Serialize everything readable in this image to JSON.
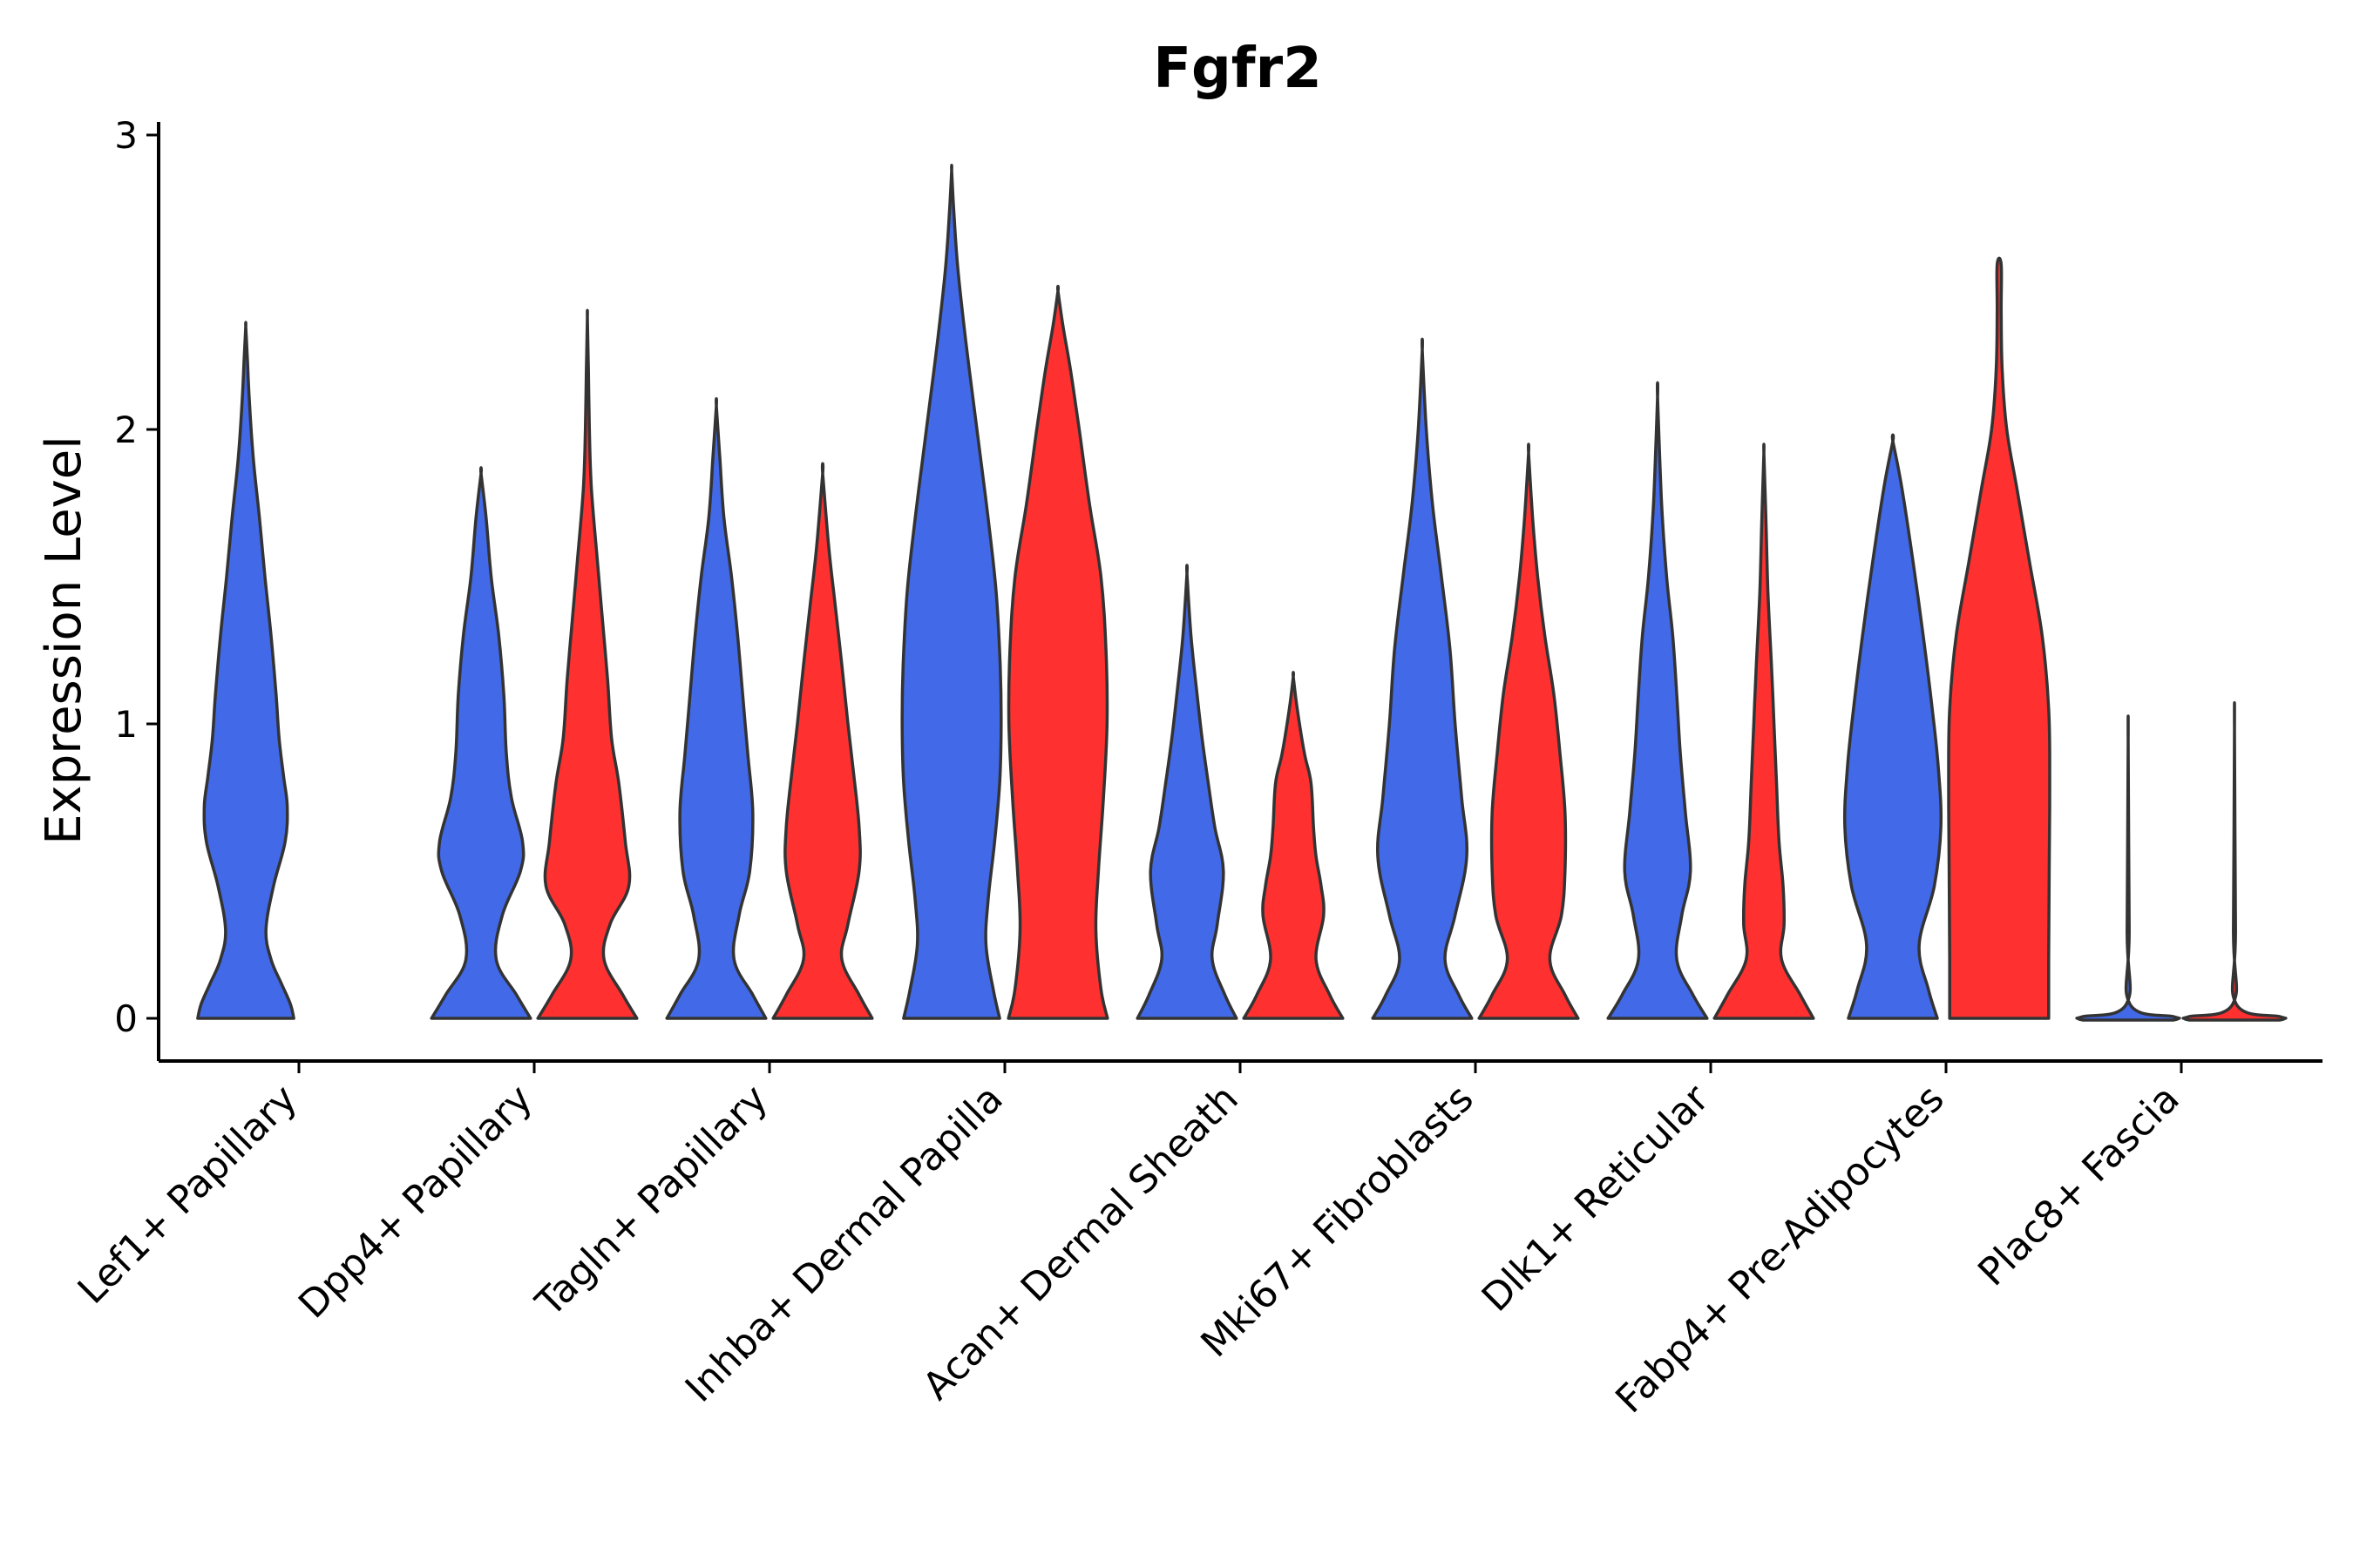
{
  "chart_data": {
    "type": "violin",
    "title": "Fgfr2",
    "xlabel": "",
    "ylabel": "Expression Level",
    "ylim": [
      -0.15,
      3.05
    ],
    "yticks": [
      0,
      1,
      2,
      3
    ],
    "ytick_labels": [
      "0",
      "1",
      "2",
      "3"
    ],
    "categories": [
      "Lef1+ Papillary",
      "Dpp4+ Papillary",
      "Tagln+ Papillary",
      "Inhba+ Dermal Papilla",
      "Acan+ Dermal Sheath",
      "Mki67+ Fibroblasts",
      "Dlk1+ Reticular",
      "Fabp4+ Pre-Adipocytes",
      "Plac8+ Fascia"
    ],
    "colors": {
      "group_a": "#4169E8",
      "group_b": "#FF3030",
      "outline": "#333333"
    },
    "violins": [
      {
        "category": 0,
        "group": "a",
        "max": 2.35,
        "profile": [
          [
            0,
            0.95
          ],
          [
            0.05,
            0.88
          ],
          [
            0.12,
            0.7
          ],
          [
            0.2,
            0.5
          ],
          [
            0.3,
            0.4
          ],
          [
            0.45,
            0.55
          ],
          [
            0.6,
            0.78
          ],
          [
            0.72,
            0.82
          ],
          [
            0.82,
            0.75
          ],
          [
            0.95,
            0.66
          ],
          [
            1.1,
            0.6
          ],
          [
            1.3,
            0.5
          ],
          [
            1.5,
            0.38
          ],
          [
            1.7,
            0.27
          ],
          [
            1.9,
            0.15
          ],
          [
            2.1,
            0.07
          ],
          [
            2.25,
            0.03
          ],
          [
            2.35,
            0
          ]
        ]
      },
      {
        "category": 1,
        "group": "a",
        "max": 1.85,
        "profile": [
          [
            0,
            0.98
          ],
          [
            0.08,
            0.7
          ],
          [
            0.2,
            0.3
          ],
          [
            0.35,
            0.42
          ],
          [
            0.5,
            0.78
          ],
          [
            0.6,
            0.82
          ],
          [
            0.75,
            0.6
          ],
          [
            0.9,
            0.5
          ],
          [
            1.1,
            0.45
          ],
          [
            1.3,
            0.35
          ],
          [
            1.5,
            0.2
          ],
          [
            1.7,
            0.1
          ],
          [
            1.85,
            0
          ]
        ]
      },
      {
        "category": 1,
        "group": "b",
        "max": 2.38,
        "profile": [
          [
            0,
            0.98
          ],
          [
            0.08,
            0.7
          ],
          [
            0.2,
            0.33
          ],
          [
            0.32,
            0.45
          ],
          [
            0.45,
            0.82
          ],
          [
            0.6,
            0.75
          ],
          [
            0.8,
            0.62
          ],
          [
            0.95,
            0.48
          ],
          [
            1.15,
            0.4
          ],
          [
            1.35,
            0.3
          ],
          [
            1.55,
            0.2
          ],
          [
            1.8,
            0.08
          ],
          [
            2.0,
            0.04
          ],
          [
            2.2,
            0.02
          ],
          [
            2.38,
            0
          ]
        ]
      },
      {
        "category": 2,
        "group": "a",
        "max": 2.08,
        "profile": [
          [
            0,
            0.98
          ],
          [
            0.08,
            0.72
          ],
          [
            0.2,
            0.35
          ],
          [
            0.35,
            0.45
          ],
          [
            0.5,
            0.66
          ],
          [
            0.7,
            0.72
          ],
          [
            0.9,
            0.62
          ],
          [
            1.1,
            0.52
          ],
          [
            1.3,
            0.42
          ],
          [
            1.5,
            0.3
          ],
          [
            1.7,
            0.15
          ],
          [
            1.9,
            0.07
          ],
          [
            2.08,
            0
          ]
        ]
      },
      {
        "category": 2,
        "group": "b",
        "max": 1.85,
        "profile": [
          [
            0,
            0.98
          ],
          [
            0.08,
            0.72
          ],
          [
            0.2,
            0.38
          ],
          [
            0.32,
            0.5
          ],
          [
            0.5,
            0.72
          ],
          [
            0.65,
            0.72
          ],
          [
            0.85,
            0.6
          ],
          [
            1.0,
            0.5
          ],
          [
            1.2,
            0.38
          ],
          [
            1.4,
            0.25
          ],
          [
            1.6,
            0.12
          ],
          [
            1.85,
            0
          ]
        ]
      },
      {
        "category": 3,
        "group": "a",
        "max": 2.88,
        "profile": [
          [
            0,
            0.95
          ],
          [
            0.1,
            0.82
          ],
          [
            0.25,
            0.68
          ],
          [
            0.4,
            0.72
          ],
          [
            0.6,
            0.85
          ],
          [
            0.8,
            0.95
          ],
          [
            1.0,
            0.98
          ],
          [
            1.2,
            0.96
          ],
          [
            1.45,
            0.88
          ],
          [
            1.7,
            0.72
          ],
          [
            2.0,
            0.5
          ],
          [
            2.3,
            0.28
          ],
          [
            2.55,
            0.12
          ],
          [
            2.75,
            0.04
          ],
          [
            2.88,
            0
          ]
        ]
      },
      {
        "category": 3,
        "group": "b",
        "max": 2.47,
        "profile": [
          [
            0,
            0.98
          ],
          [
            0.1,
            0.85
          ],
          [
            0.3,
            0.75
          ],
          [
            0.5,
            0.8
          ],
          [
            0.75,
            0.9
          ],
          [
            1.0,
            0.97
          ],
          [
            1.25,
            0.95
          ],
          [
            1.5,
            0.85
          ],
          [
            1.75,
            0.62
          ],
          [
            2.0,
            0.42
          ],
          [
            2.2,
            0.25
          ],
          [
            2.35,
            0.1
          ],
          [
            2.47,
            0
          ]
        ]
      },
      {
        "category": 4,
        "group": "a",
        "max": 1.51,
        "profile": [
          [
            0,
            0.98
          ],
          [
            0.08,
            0.75
          ],
          [
            0.2,
            0.5
          ],
          [
            0.32,
            0.6
          ],
          [
            0.5,
            0.72
          ],
          [
            0.65,
            0.55
          ],
          [
            0.8,
            0.42
          ],
          [
            0.95,
            0.3
          ],
          [
            1.1,
            0.2
          ],
          [
            1.3,
            0.08
          ],
          [
            1.51,
            0
          ]
        ]
      },
      {
        "category": 4,
        "group": "b",
        "max": 1.16,
        "profile": [
          [
            0,
            0.98
          ],
          [
            0.08,
            0.72
          ],
          [
            0.2,
            0.45
          ],
          [
            0.35,
            0.6
          ],
          [
            0.45,
            0.55
          ],
          [
            0.55,
            0.45
          ],
          [
            0.65,
            0.4
          ],
          [
            0.8,
            0.35
          ],
          [
            0.9,
            0.22
          ],
          [
            1.05,
            0.08
          ],
          [
            1.16,
            0
          ]
        ]
      },
      {
        "category": 5,
        "group": "a",
        "max": 2.27,
        "profile": [
          [
            0,
            0.98
          ],
          [
            0.08,
            0.72
          ],
          [
            0.2,
            0.45
          ],
          [
            0.35,
            0.65
          ],
          [
            0.55,
            0.88
          ],
          [
            0.75,
            0.78
          ],
          [
            1.0,
            0.65
          ],
          [
            1.25,
            0.55
          ],
          [
            1.5,
            0.38
          ],
          [
            1.75,
            0.2
          ],
          [
            2.0,
            0.08
          ],
          [
            2.27,
            0
          ]
        ]
      },
      {
        "category": 5,
        "group": "b",
        "max": 1.92,
        "profile": [
          [
            0,
            0.98
          ],
          [
            0.08,
            0.72
          ],
          [
            0.2,
            0.42
          ],
          [
            0.35,
            0.65
          ],
          [
            0.5,
            0.72
          ],
          [
            0.7,
            0.72
          ],
          [
            0.9,
            0.62
          ],
          [
            1.1,
            0.5
          ],
          [
            1.3,
            0.32
          ],
          [
            1.5,
            0.18
          ],
          [
            1.7,
            0.08
          ],
          [
            1.92,
            0
          ]
        ]
      },
      {
        "category": 6,
        "group": "a",
        "max": 2.11,
        "profile": [
          [
            0,
            0.98
          ],
          [
            0.08,
            0.7
          ],
          [
            0.2,
            0.38
          ],
          [
            0.35,
            0.48
          ],
          [
            0.5,
            0.65
          ],
          [
            0.7,
            0.55
          ],
          [
            0.9,
            0.45
          ],
          [
            1.1,
            0.38
          ],
          [
            1.3,
            0.3
          ],
          [
            1.5,
            0.18
          ],
          [
            1.75,
            0.08
          ],
          [
            2.11,
            0
          ]
        ]
      },
      {
        "category": 6,
        "group": "b",
        "max": 1.92,
        "profile": [
          [
            0,
            0.98
          ],
          [
            0.08,
            0.72
          ],
          [
            0.2,
            0.35
          ],
          [
            0.32,
            0.4
          ],
          [
            0.45,
            0.38
          ],
          [
            0.6,
            0.3
          ],
          [
            0.8,
            0.25
          ],
          [
            1.0,
            0.2
          ],
          [
            1.2,
            0.15
          ],
          [
            1.45,
            0.08
          ],
          [
            1.7,
            0.04
          ],
          [
            1.92,
            0
          ]
        ]
      },
      {
        "category": 7,
        "group": "a",
        "max": 1.96,
        "profile": [
          [
            0,
            0.88
          ],
          [
            0.1,
            0.7
          ],
          [
            0.25,
            0.52
          ],
          [
            0.45,
            0.82
          ],
          [
            0.65,
            0.95
          ],
          [
            0.85,
            0.9
          ],
          [
            1.05,
            0.78
          ],
          [
            1.3,
            0.6
          ],
          [
            1.55,
            0.4
          ],
          [
            1.8,
            0.18
          ],
          [
            1.96,
            0
          ]
        ]
      },
      {
        "category": 7,
        "group": "b",
        "max": 2.56,
        "profile": [
          [
            0,
            0.98
          ],
          [
            0.2,
            0.98
          ],
          [
            0.5,
            0.99
          ],
          [
            0.8,
            1.0
          ],
          [
            1.05,
            0.98
          ],
          [
            1.3,
            0.85
          ],
          [
            1.55,
            0.6
          ],
          [
            1.8,
            0.35
          ],
          [
            2.0,
            0.15
          ],
          [
            2.2,
            0.06
          ],
          [
            2.4,
            0.04
          ],
          [
            2.56,
            0.04
          ]
        ]
      },
      {
        "category": 8,
        "group": "a",
        "max": 0.94,
        "profile": [
          [
            -0.006,
            0.9
          ],
          [
            0.0,
            1.0
          ],
          [
            0.006,
            0.9
          ],
          [
            0.05,
            0.03
          ],
          [
            0.3,
            0.02
          ],
          [
            0.94,
            0
          ]
        ]
      },
      {
        "category": 8,
        "group": "b",
        "max": 0.98,
        "profile": [
          [
            -0.006,
            0.9
          ],
          [
            0.0,
            1.0
          ],
          [
            0.006,
            0.9
          ],
          [
            0.05,
            0.03
          ],
          [
            0.3,
            0.02
          ],
          [
            0.98,
            0
          ]
        ]
      }
    ]
  }
}
